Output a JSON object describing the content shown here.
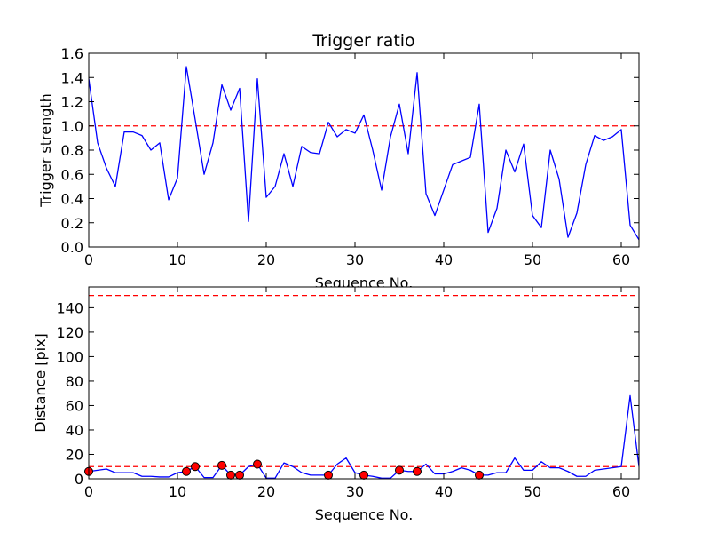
{
  "chart_data": [
    {
      "type": "line",
      "title": "Trigger ratio",
      "xlabel": "Sequence No.",
      "ylabel": "Trigger strength",
      "xlim": [
        0,
        62
      ],
      "ylim": [
        0,
        1.6
      ],
      "xticks": [
        0,
        10,
        20,
        30,
        40,
        50,
        60
      ],
      "xtick_labels": [
        "0",
        "10",
        "20",
        "30",
        "40",
        "50",
        "60"
      ],
      "yticks": [
        0,
        0.2,
        0.4,
        0.6,
        0.8,
        1.0,
        1.2,
        1.4,
        1.6
      ],
      "ytick_labels": [
        "0.0",
        "0.2",
        "0.4",
        "0.6",
        "0.8",
        "1.0",
        "1.2",
        "1.4",
        "1.6"
      ],
      "series": [
        {
          "name": "trigger strength",
          "color": "#0000ff",
          "style": "solid",
          "x": [
            0,
            1,
            2,
            3,
            4,
            5,
            6,
            7,
            8,
            9,
            10,
            11,
            12,
            13,
            14,
            15,
            16,
            17,
            18,
            19,
            20,
            21,
            22,
            23,
            24,
            25,
            26,
            27,
            28,
            29,
            30,
            31,
            32,
            33,
            34,
            35,
            36,
            37,
            38,
            39,
            40,
            41,
            42,
            43,
            44,
            45,
            46,
            47,
            48,
            49,
            50,
            51,
            52,
            53,
            54,
            55,
            56,
            57,
            58,
            59,
            60,
            61,
            62
          ],
          "values": [
            1.39,
            0.86,
            0.65,
            0.5,
            0.95,
            0.95,
            0.92,
            0.8,
            0.86,
            0.39,
            0.57,
            1.49,
            1.05,
            0.6,
            0.86,
            1.34,
            1.13,
            1.31,
            0.21,
            1.39,
            0.41,
            0.5,
            0.77,
            0.5,
            0.83,
            0.78,
            0.77,
            1.03,
            0.91,
            0.97,
            0.94,
            1.09,
            0.8,
            0.47,
            0.91,
            1.18,
            0.77,
            1.44,
            0.44,
            0.26,
            0.47,
            0.68,
            0.71,
            0.74,
            1.18,
            0.12,
            0.32,
            0.8,
            0.62,
            0.85,
            0.26,
            0.16,
            0.8,
            0.56,
            0.08,
            0.28,
            0.68,
            0.92,
            0.88,
            0.91,
            0.97,
            0.18,
            0.06
          ]
        }
      ],
      "reference_lines": [
        {
          "y": 1.0,
          "color": "#ff0000",
          "style": "dashed"
        }
      ]
    },
    {
      "type": "line",
      "title": "",
      "xlabel": "Sequence No.",
      "ylabel": "Distance [pix]",
      "xlim": [
        0,
        62
      ],
      "ylim": [
        0,
        157
      ],
      "xticks": [
        0,
        10,
        20,
        30,
        40,
        50,
        60
      ],
      "xtick_labels": [
        "0",
        "10",
        "20",
        "30",
        "40",
        "50",
        "60"
      ],
      "yticks": [
        0,
        20,
        40,
        60,
        80,
        100,
        120,
        140
      ],
      "ytick_labels": [
        "0",
        "20",
        "40",
        "60",
        "80",
        "100",
        "120",
        "140"
      ],
      "series": [
        {
          "name": "distance",
          "color": "#0000ff",
          "style": "solid",
          "x": [
            0,
            1,
            2,
            3,
            4,
            5,
            6,
            7,
            8,
            9,
            10,
            11,
            12,
            13,
            14,
            15,
            16,
            17,
            18,
            19,
            20,
            21,
            22,
            23,
            24,
            25,
            26,
            27,
            28,
            29,
            30,
            31,
            32,
            33,
            34,
            35,
            36,
            37,
            38,
            39,
            40,
            41,
            42,
            43,
            44,
            45,
            46,
            47,
            48,
            49,
            50,
            51,
            52,
            53,
            54,
            55,
            56,
            57,
            58,
            59,
            60,
            61,
            62
          ],
          "values": [
            6,
            7,
            8,
            5,
            5,
            5,
            2,
            2,
            1.5,
            1.5,
            5,
            6,
            10,
            1,
            1,
            11,
            3,
            3,
            10,
            12,
            0.5,
            0.5,
            13,
            10,
            5,
            3,
            3,
            3,
            12,
            17,
            5,
            3,
            2,
            0.5,
            0.5,
            7,
            6,
            6,
            12,
            4,
            4,
            6,
            9,
            7,
            3,
            3,
            5,
            5,
            17,
            7,
            7,
            14,
            9,
            9,
            6,
            2,
            2,
            7,
            8,
            9,
            10,
            68,
            10
          ]
        },
        {
          "name": "markers",
          "color": "#ff0000",
          "style": "markers",
          "x": [
            0,
            11,
            12,
            15,
            16,
            17,
            19,
            27,
            31,
            35,
            37,
            44
          ],
          "values": [
            6,
            6,
            10,
            11,
            3,
            3,
            12,
            3,
            3,
            7,
            6,
            3
          ]
        }
      ],
      "reference_lines": [
        {
          "y": 10,
          "color": "#ff0000",
          "style": "dashed"
        },
        {
          "y": 150,
          "color": "#ff0000",
          "style": "dashed"
        }
      ]
    }
  ]
}
